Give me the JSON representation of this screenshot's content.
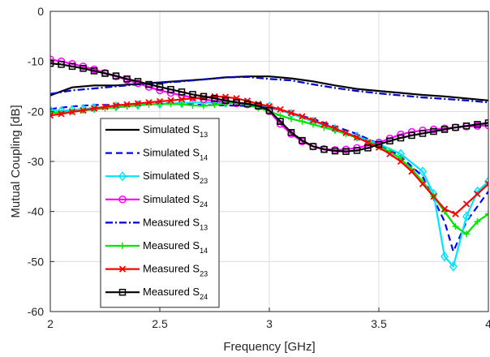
{
  "chart_data": {
    "type": "line",
    "xlabel": "Frequency [GHz]",
    "ylabel": "Mutual Coupling [dB]",
    "xlim": [
      2,
      4
    ],
    "ylim": [
      -60,
      0
    ],
    "xticks": [
      2,
      2.5,
      3,
      3.5,
      4
    ],
    "xtick_labels": [
      "2",
      "2.5",
      "3",
      "3.5",
      "4"
    ],
    "yticks": [
      0,
      -10,
      -20,
      -30,
      -40,
      -50,
      -60
    ],
    "ytick_labels": [
      "0",
      "-10",
      "-20",
      "-30",
      "-40",
      "-50",
      "-60"
    ],
    "grid": true,
    "legend_position": "left-center",
    "series": [
      {
        "name": "Simulated S",
        "sub": "13",
        "color": "#000000",
        "dash": "",
        "marker": "none",
        "x": [
          2.0,
          2.1,
          2.2,
          2.3,
          2.4,
          2.5,
          2.6,
          2.7,
          2.8,
          2.9,
          3.0,
          3.1,
          3.2,
          3.3,
          3.4,
          3.5,
          3.6,
          3.7,
          3.8,
          3.9,
          4.0
        ],
        "y": [
          -16.8,
          -15.2,
          -14.8,
          -14.8,
          -14.5,
          -14.2,
          -13.9,
          -13.6,
          -13.2,
          -13.0,
          -13.0,
          -13.4,
          -14.0,
          -14.8,
          -15.5,
          -15.9,
          -16.3,
          -16.7,
          -17.0,
          -17.4,
          -17.8
        ]
      },
      {
        "name": "Simulated S",
        "sub": "14",
        "color": "#0000ff",
        "dash": "8,5",
        "marker": "none",
        "x": [
          2.0,
          2.1,
          2.2,
          2.3,
          2.4,
          2.5,
          2.6,
          2.7,
          2.8,
          2.9,
          3.0,
          3.2,
          3.4,
          3.5,
          3.6,
          3.7,
          3.8,
          3.84,
          3.9,
          4.0
        ],
        "y": [
          -19.5,
          -19.0,
          -18.7,
          -18.7,
          -18.5,
          -18.3,
          -18.5,
          -18.7,
          -18.8,
          -18.9,
          -19.2,
          -21.5,
          -24.5,
          -26.5,
          -29.0,
          -33.0,
          -42.0,
          -48.0,
          -42.0,
          -36.0
        ]
      },
      {
        "name": "Simulated S",
        "sub": "23",
        "color": "#00e5ff",
        "dash": "",
        "marker": "diamond",
        "x": [
          2.0,
          2.05,
          2.1,
          2.15,
          2.2,
          2.3,
          2.4,
          2.5,
          2.6,
          2.7,
          2.8,
          2.9,
          3.0,
          3.1,
          3.2,
          3.3,
          3.4,
          3.5,
          3.6,
          3.7,
          3.75,
          3.8,
          3.84,
          3.9,
          3.95,
          4.0
        ],
        "y": [
          -19.8,
          -19.9,
          -19.7,
          -19.5,
          -19.3,
          -19.0,
          -18.7,
          -18.5,
          -18.3,
          -18.2,
          -18.3,
          -18.4,
          -19.0,
          -20.5,
          -22.0,
          -23.5,
          -25.0,
          -26.5,
          -28.5,
          -32.0,
          -36.5,
          -49.0,
          -51.0,
          -41.0,
          -36.0,
          -34.0
        ]
      },
      {
        "name": "Simulated S",
        "sub": "24",
        "color": "#ff00ff",
        "dash": "",
        "marker": "circle",
        "x": [
          2.0,
          2.05,
          2.1,
          2.15,
          2.2,
          2.25,
          2.3,
          2.35,
          2.4,
          2.45,
          2.5,
          2.55,
          2.6,
          2.65,
          2.7,
          2.75,
          2.8,
          2.85,
          2.9,
          2.95,
          3.0,
          3.05,
          3.1,
          3.15,
          3.2,
          3.25,
          3.3,
          3.35,
          3.4,
          3.45,
          3.5,
          3.55,
          3.6,
          3.65,
          3.7,
          3.75,
          3.8,
          3.85,
          3.9,
          3.95,
          4.0
        ],
        "y": [
          -9.6,
          -10.0,
          -10.5,
          -11.0,
          -11.6,
          -12.3,
          -13.0,
          -13.7,
          -14.4,
          -15.1,
          -15.8,
          -16.3,
          -16.8,
          -17.2,
          -17.6,
          -17.9,
          -18.1,
          -18.4,
          -18.6,
          -19.0,
          -20.0,
          -22.5,
          -24.5,
          -26.0,
          -27.0,
          -27.5,
          -27.7,
          -27.6,
          -27.3,
          -26.8,
          -26.2,
          -25.4,
          -24.6,
          -24.1,
          -23.8,
          -23.6,
          -23.4,
          -23.2,
          -23.0,
          -22.9,
          -22.8
        ]
      },
      {
        "name": "Measured S",
        "sub": "13",
        "color": "#0000cd",
        "dash": "9,3,2,3",
        "marker": "none",
        "x": [
          2.0,
          2.1,
          2.2,
          2.3,
          2.4,
          2.5,
          2.6,
          2.7,
          2.8,
          2.9,
          3.0,
          3.1,
          3.2,
          3.3,
          3.4,
          3.5,
          3.6,
          3.7,
          3.8,
          3.9,
          4.0
        ],
        "y": [
          -16.5,
          -15.8,
          -15.4,
          -15.0,
          -14.6,
          -14.3,
          -14.0,
          -13.6,
          -13.2,
          -13.1,
          -13.5,
          -13.8,
          -14.6,
          -15.3,
          -15.9,
          -16.4,
          -16.8,
          -17.2,
          -17.5,
          -17.8,
          -18.2
        ]
      },
      {
        "name": "Measured S",
        "sub": "14",
        "color": "#00e600",
        "dash": "",
        "marker": "plus",
        "x": [
          2.0,
          2.05,
          2.1,
          2.15,
          2.2,
          2.25,
          2.3,
          2.35,
          2.4,
          2.45,
          2.5,
          2.55,
          2.6,
          2.65,
          2.7,
          2.75,
          2.8,
          2.85,
          2.9,
          2.95,
          3.0,
          3.05,
          3.1,
          3.15,
          3.2,
          3.25,
          3.3,
          3.35,
          3.4,
          3.45,
          3.5,
          3.55,
          3.6,
          3.65,
          3.7,
          3.75,
          3.8,
          3.85,
          3.9,
          3.95,
          4.0
        ],
        "y": [
          -20.3,
          -20.2,
          -20.0,
          -19.8,
          -19.6,
          -19.4,
          -19.2,
          -19.0,
          -18.8,
          -18.6,
          -18.5,
          -18.5,
          -18.6,
          -18.8,
          -18.9,
          -18.7,
          -18.4,
          -18.3,
          -18.6,
          -19.3,
          -20.0,
          -20.8,
          -21.5,
          -22.0,
          -22.6,
          -23.2,
          -23.8,
          -24.5,
          -25.3,
          -26.0,
          -27.0,
          -28.0,
          -29.5,
          -31.5,
          -34.0,
          -37.0,
          -40.0,
          -43.0,
          -44.5,
          -42.0,
          -40.5
        ]
      },
      {
        "name": "Measured S",
        "sub": "23",
        "color": "#ff0000",
        "dash": "",
        "marker": "cross",
        "x": [
          2.0,
          2.05,
          2.1,
          2.15,
          2.2,
          2.25,
          2.3,
          2.35,
          2.4,
          2.45,
          2.5,
          2.55,
          2.6,
          2.65,
          2.7,
          2.75,
          2.8,
          2.85,
          2.9,
          2.95,
          3.0,
          3.05,
          3.1,
          3.15,
          3.2,
          3.25,
          3.3,
          3.35,
          3.4,
          3.45,
          3.5,
          3.55,
          3.6,
          3.65,
          3.7,
          3.75,
          3.8,
          3.85,
          3.9,
          3.95,
          4.0
        ],
        "y": [
          -20.8,
          -20.5,
          -20.1,
          -19.8,
          -19.4,
          -19.1,
          -18.8,
          -18.6,
          -18.4,
          -18.2,
          -18.0,
          -17.8,
          -17.6,
          -17.4,
          -17.2,
          -17.0,
          -17.1,
          -17.4,
          -17.9,
          -18.5,
          -19.0,
          -19.6,
          -20.3,
          -21.0,
          -21.8,
          -22.6,
          -23.4,
          -24.3,
          -25.2,
          -26.2,
          -27.2,
          -28.5,
          -30.0,
          -32.0,
          -34.5,
          -37.0,
          -39.5,
          -40.5,
          -38.5,
          -36.5,
          -34.5
        ]
      },
      {
        "name": "Measured S",
        "sub": "24",
        "color": "#000000",
        "dash": "",
        "marker": "square",
        "x": [
          2.0,
          2.05,
          2.1,
          2.15,
          2.2,
          2.25,
          2.3,
          2.35,
          2.4,
          2.45,
          2.5,
          2.55,
          2.6,
          2.65,
          2.7,
          2.75,
          2.8,
          2.85,
          2.9,
          2.95,
          3.0,
          3.05,
          3.1,
          3.15,
          3.2,
          3.25,
          3.3,
          3.35,
          3.4,
          3.45,
          3.5,
          3.55,
          3.6,
          3.65,
          3.7,
          3.75,
          3.8,
          3.85,
          3.9,
          3.95,
          4.0
        ],
        "y": [
          -10.4,
          -10.6,
          -11.0,
          -11.4,
          -11.9,
          -12.4,
          -12.9,
          -13.5,
          -14.0,
          -14.6,
          -15.1,
          -15.6,
          -16.1,
          -16.6,
          -17.0,
          -17.4,
          -17.8,
          -18.2,
          -18.5,
          -18.9,
          -19.8,
          -22.0,
          -24.2,
          -25.8,
          -27.0,
          -27.6,
          -27.9,
          -28.0,
          -27.8,
          -27.3,
          -26.6,
          -25.9,
          -25.3,
          -24.8,
          -24.4,
          -24.0,
          -23.6,
          -23.2,
          -22.9,
          -22.6,
          -22.3
        ]
      }
    ]
  }
}
